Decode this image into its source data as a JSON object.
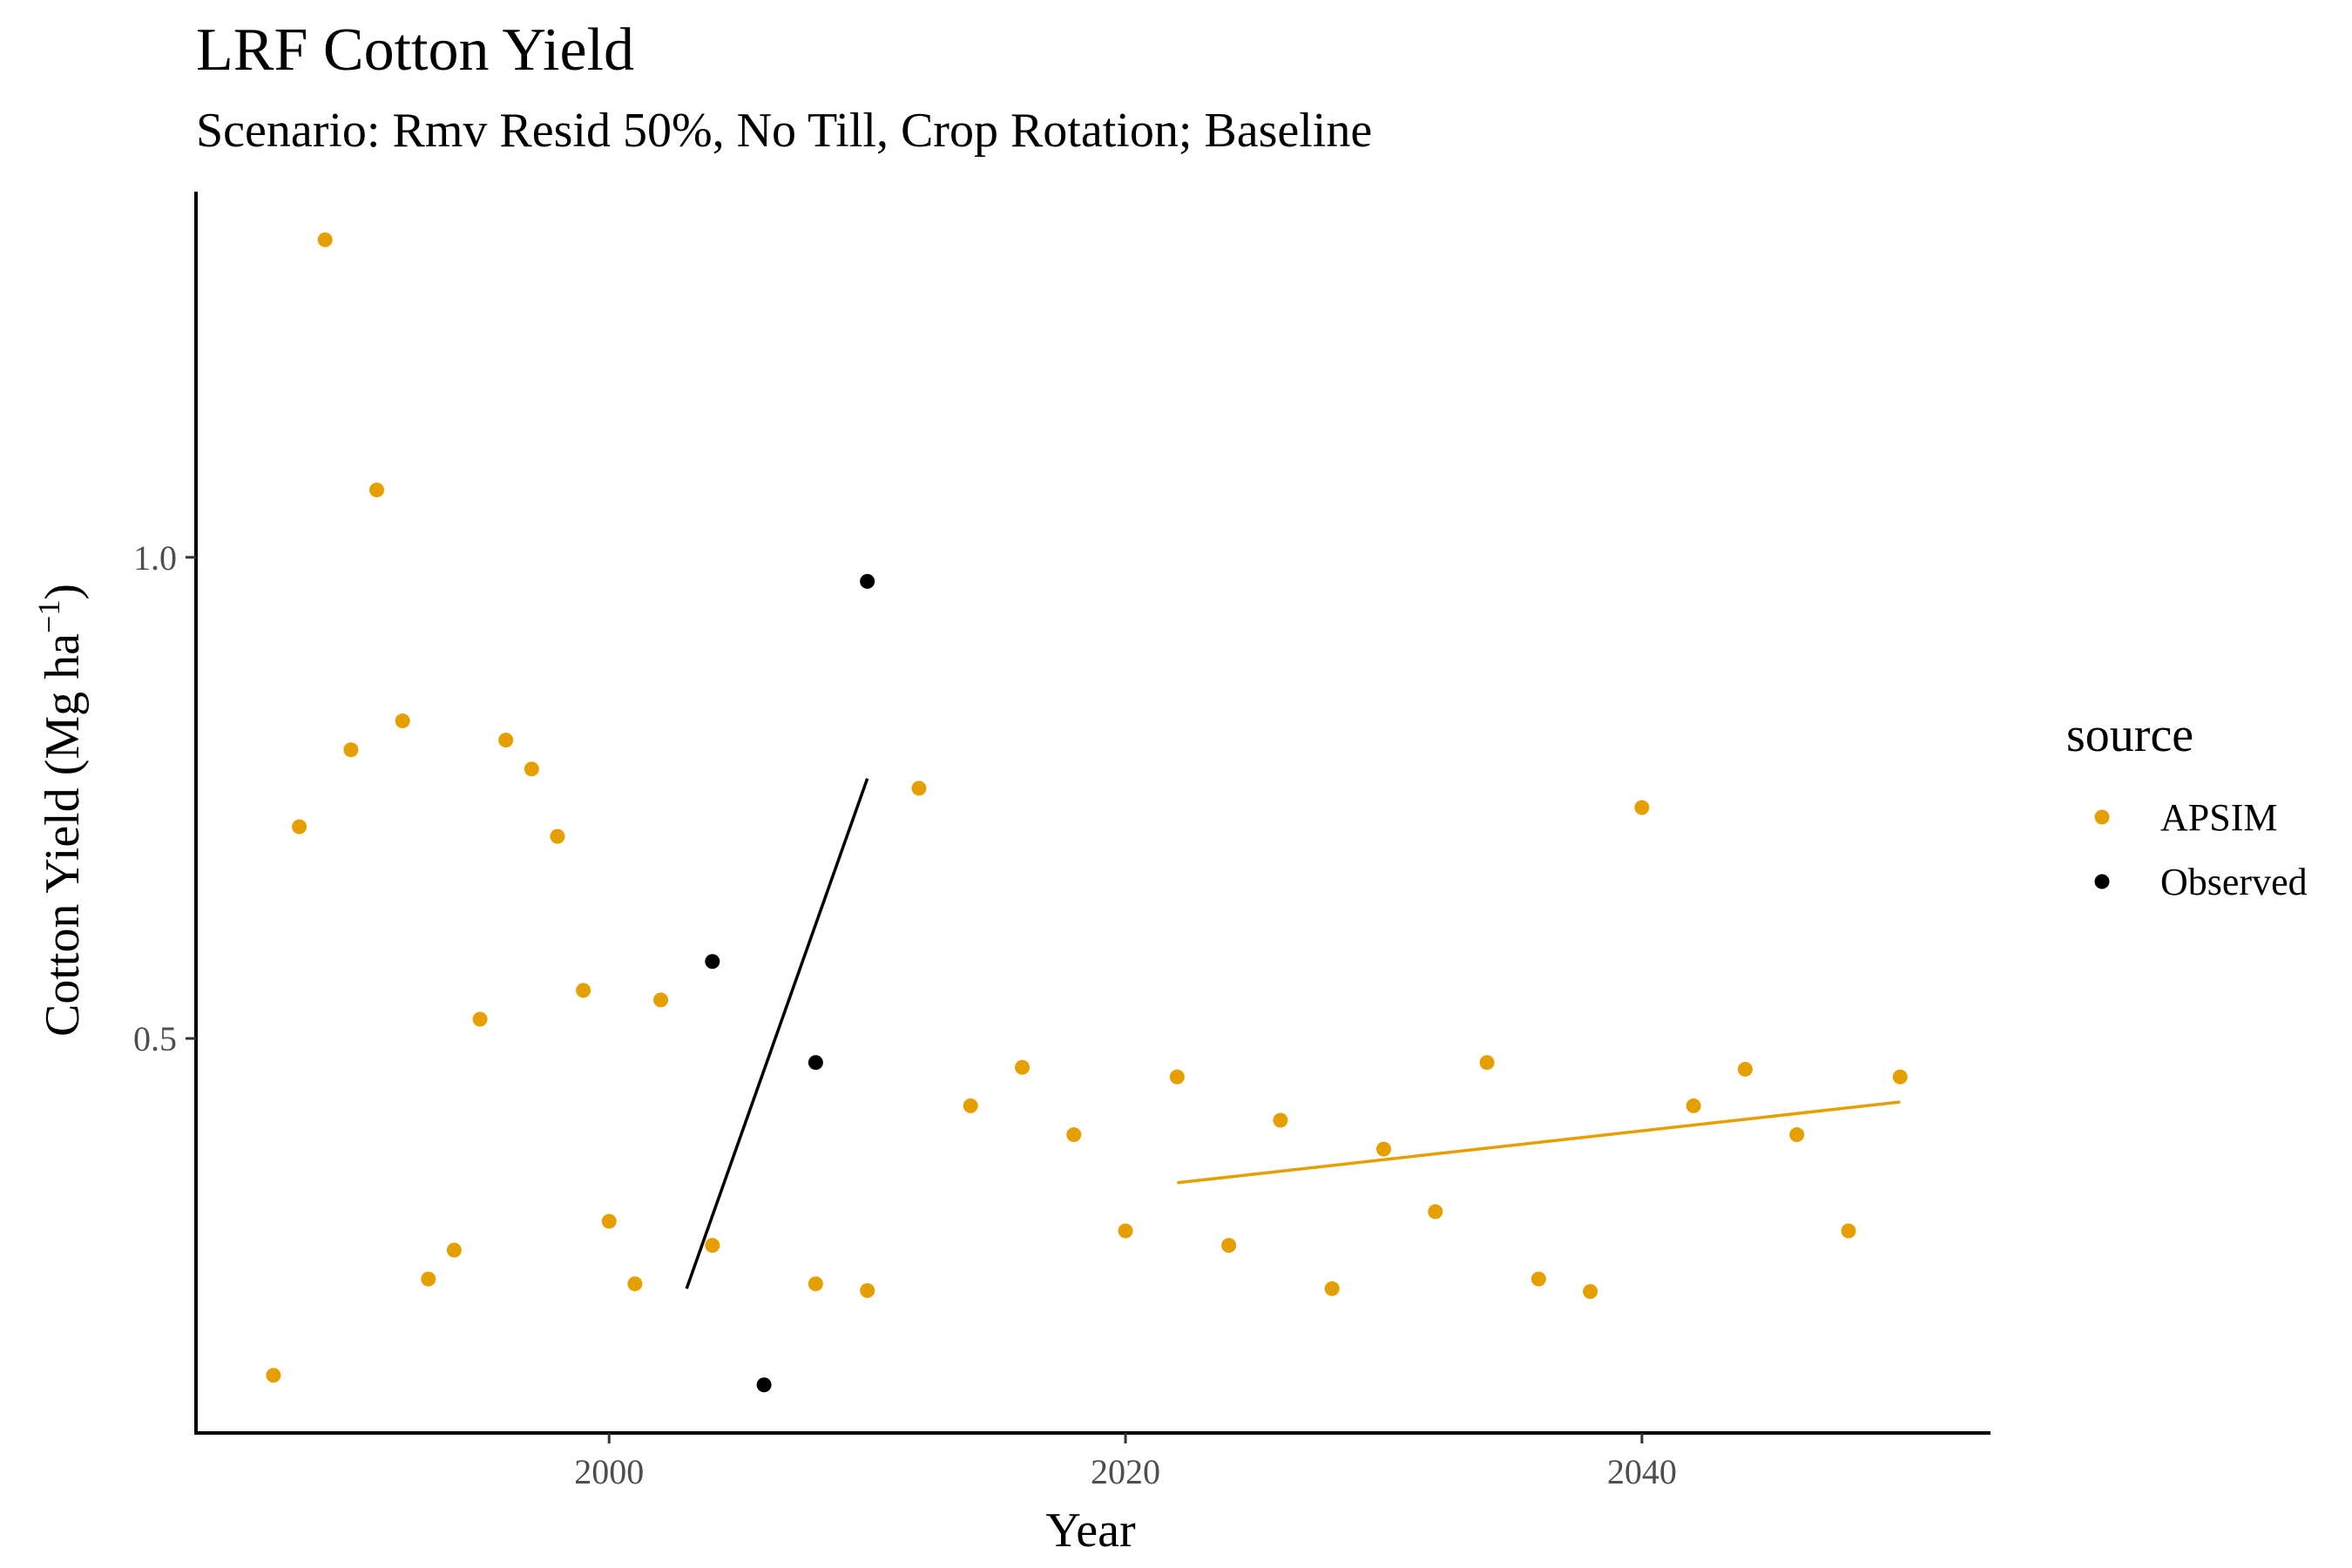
{
  "chart_data": {
    "type": "scatter",
    "title": "LRF Cotton Yield",
    "subtitle": "Scenario: Rmv Resid 50%, No Till, Crop Rotation; Baseline",
    "xlabel": "Year",
    "ylabel_main": "Cotton Yield (Mg ha",
    "ylabel_sup": "−1",
    "ylabel_close": ")",
    "xlim": [
      1984,
      2053.5
    ],
    "ylim": [
      0.09,
      1.38
    ],
    "x_ticks": [
      2000,
      2020,
      2040
    ],
    "x_tick_labels": [
      "2000",
      "2020",
      "2040"
    ],
    "y_ticks": [
      0.5,
      1.0
    ],
    "y_tick_labels": [
      "0.5",
      "1.0"
    ],
    "grid": false,
    "legend": {
      "title": "source",
      "position": "right"
    },
    "series": [
      {
        "name": "APSIM",
        "color": "#E69F00",
        "points": [
          [
            1987,
            0.15
          ],
          [
            1988,
            0.72
          ],
          [
            1989,
            1.33
          ],
          [
            1990,
            0.8
          ],
          [
            1991,
            1.07
          ],
          [
            1992,
            0.83
          ],
          [
            1993,
            0.25
          ],
          [
            1994,
            0.28
          ],
          [
            1995,
            0.52
          ],
          [
            1996,
            0.81
          ],
          [
            1997,
            0.78
          ],
          [
            1998,
            0.71
          ],
          [
            1999,
            0.55
          ],
          [
            2000,
            0.31
          ],
          [
            2001,
            0.245
          ],
          [
            2002,
            0.54
          ],
          [
            2004,
            0.285
          ],
          [
            2008,
            0.245
          ],
          [
            2010,
            0.238
          ],
          [
            2012,
            0.76
          ],
          [
            2014,
            0.43
          ],
          [
            2016,
            0.47
          ],
          [
            2018,
            0.4
          ],
          [
            2020,
            0.3
          ],
          [
            2022,
            0.46
          ],
          [
            2024,
            0.285
          ],
          [
            2026,
            0.415
          ],
          [
            2028,
            0.24
          ],
          [
            2030,
            0.385
          ],
          [
            2032,
            0.32
          ],
          [
            2034,
            0.475
          ],
          [
            2036,
            0.25
          ],
          [
            2038,
            0.237
          ],
          [
            2040,
            0.74
          ],
          [
            2042,
            0.43
          ],
          [
            2044,
            0.468
          ],
          [
            2046,
            0.4
          ],
          [
            2048,
            0.3
          ],
          [
            2050,
            0.46
          ]
        ],
        "trend": {
          "x": [
            2022,
            2050
          ],
          "y": [
            0.35,
            0.434
          ]
        }
      },
      {
        "name": "Observed",
        "color": "#000000",
        "points": [
          [
            2004,
            0.58
          ],
          [
            2006,
            0.14
          ],
          [
            2008,
            0.475
          ],
          [
            2010,
            0.975
          ]
        ],
        "trend": {
          "x": [
            2003,
            2010
          ],
          "y": [
            0.24,
            0.77
          ]
        }
      }
    ]
  }
}
